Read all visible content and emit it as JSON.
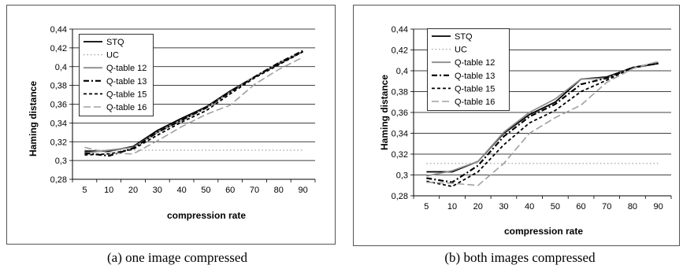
{
  "captions": [
    "(a)  one image compressed",
    "(b)  both images compressed"
  ],
  "chart_data": [
    {
      "type": "line",
      "xlabel": "compression rate",
      "ylabel": "Haming distance",
      "categories": [
        "5",
        "10",
        "20",
        "30",
        "40",
        "50",
        "60",
        "70",
        "80",
        "90"
      ],
      "ylim": [
        0.28,
        0.44
      ],
      "yticks": [
        "0,28",
        "0,3",
        "0,32",
        "0,34",
        "0,36",
        "0,38",
        "0,4",
        "0,42",
        "0,44"
      ],
      "grid": "horizontal",
      "legend_position": "top-left",
      "series": [
        {
          "name": "STQ",
          "color": "#000000",
          "dash": "solid",
          "values": [
            0.31,
            0.31,
            0.315,
            0.332,
            0.345,
            0.357,
            0.374,
            0.389,
            0.403,
            0.416
          ]
        },
        {
          "name": "UC",
          "color": "#a0a0a0",
          "dash": "dot",
          "values": [
            0.311,
            0.311,
            0.311,
            0.311,
            0.311,
            0.311,
            0.311,
            0.311,
            0.311,
            0.311
          ]
        },
        {
          "name": "Q-table 12",
          "color": "#8c8c8c",
          "dash": "solid",
          "values": [
            0.308,
            0.311,
            0.314,
            0.33,
            0.343,
            0.356,
            0.373,
            0.389,
            0.404,
            0.416
          ]
        },
        {
          "name": "Q-table 13",
          "color": "#000000",
          "dash": "dashdot",
          "values": [
            0.308,
            0.305,
            0.313,
            0.33,
            0.343,
            0.356,
            0.373,
            0.389,
            0.404,
            0.417
          ]
        },
        {
          "name": "Q-table 15",
          "color": "#000000",
          "dash": "dash",
          "values": [
            0.306,
            0.307,
            0.312,
            0.327,
            0.341,
            0.353,
            0.371,
            0.388,
            0.402,
            0.416
          ]
        },
        {
          "name": "Q-table 16",
          "color": "#a0a0a0",
          "dash": "longdash",
          "values": [
            0.314,
            0.308,
            0.307,
            0.321,
            0.336,
            0.349,
            0.359,
            0.381,
            0.397,
            0.41
          ]
        }
      ]
    },
    {
      "type": "line",
      "xlabel": "compression rate",
      "ylabel": "Haming distance",
      "categories": [
        "5",
        "10",
        "20",
        "30",
        "40",
        "50",
        "60",
        "70",
        "80",
        "90"
      ],
      "ylim": [
        0.28,
        0.44
      ],
      "yticks": [
        "0,28",
        "0,3",
        "0,32",
        "0,34",
        "0,36",
        "0,38",
        "0,4",
        "0,42",
        "0,44"
      ],
      "grid": "horizontal",
      "legend_position": "top-left",
      "series": [
        {
          "name": "STQ",
          "color": "#000000",
          "dash": "solid",
          "values": [
            0.303,
            0.303,
            0.313,
            0.34,
            0.358,
            0.37,
            0.392,
            0.394,
            0.403,
            0.407
          ]
        },
        {
          "name": "UC",
          "color": "#a0a0a0",
          "dash": "dot",
          "values": [
            0.311,
            0.311,
            0.311,
            0.311,
            0.311,
            0.311,
            0.311,
            0.311,
            0.311,
            0.311
          ]
        },
        {
          "name": "Q-table 12",
          "color": "#8c8c8c",
          "dash": "solid",
          "values": [
            0.299,
            0.304,
            0.313,
            0.341,
            0.36,
            0.373,
            0.392,
            0.393,
            0.403,
            0.408
          ]
        },
        {
          "name": "Q-table 13",
          "color": "#000000",
          "dash": "dashdot",
          "values": [
            0.297,
            0.293,
            0.309,
            0.337,
            0.356,
            0.368,
            0.387,
            0.393,
            0.403,
            0.407
          ]
        },
        {
          "name": "Q-table 15",
          "color": "#000000",
          "dash": "dash",
          "values": [
            0.294,
            0.289,
            0.303,
            0.329,
            0.35,
            0.362,
            0.38,
            0.391,
            0.403,
            0.407
          ]
        },
        {
          "name": "Q-table 16",
          "color": "#a0a0a0",
          "dash": "longdash",
          "values": [
            0.293,
            0.292,
            0.29,
            0.311,
            0.34,
            0.355,
            0.367,
            0.389,
            0.402,
            0.409
          ]
        }
      ]
    }
  ]
}
